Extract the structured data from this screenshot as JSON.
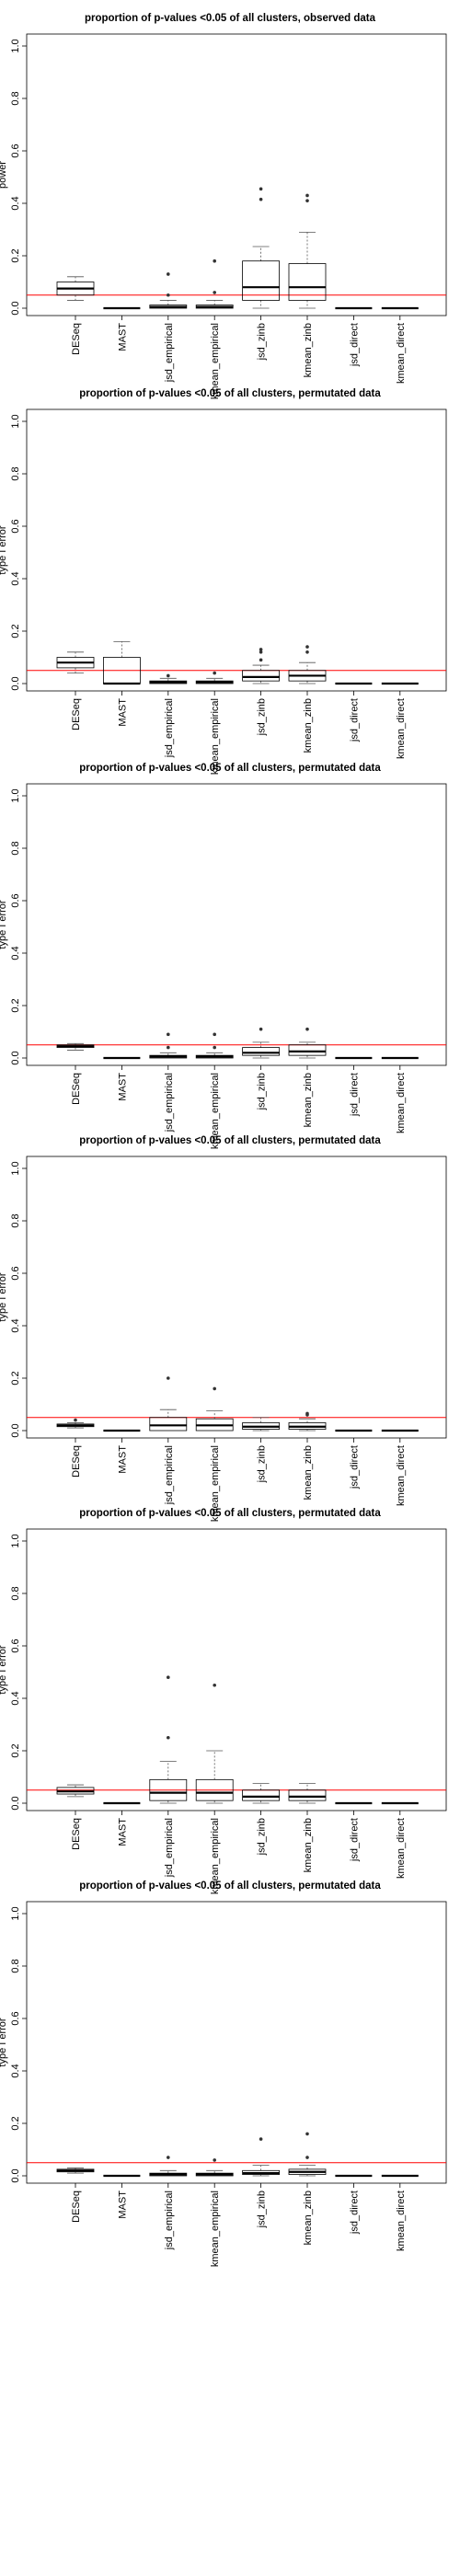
{
  "chart_data": [
    {
      "type": "boxplot",
      "title": "proportion of p-values <0.05 of all clusters, observed data",
      "ylabel": "power",
      "ylim": [
        0,
        1.0
      ],
      "yticks": [
        "0.0",
        "0.2",
        "0.4",
        "0.6",
        "0.8",
        "1.0"
      ],
      "reference_line": 0.05,
      "categories": [
        "DESeq",
        "MAST",
        "jsd_empirical",
        "kmean_empirical",
        "jsd_zinb",
        "kmean_zinb",
        "jsd_direct",
        "kmean_direct"
      ],
      "boxes": [
        {
          "low": 0.03,
          "q1": 0.05,
          "median": 0.075,
          "q3": 0.1,
          "high": 0.12,
          "outliers": []
        },
        {
          "low": 0.0,
          "q1": 0.0,
          "median": 0.0,
          "q3": 0.0,
          "high": 0.0,
          "outliers": []
        },
        {
          "low": 0.0,
          "q1": 0.0,
          "median": 0.005,
          "q3": 0.012,
          "high": 0.03,
          "outliers": [
            0.05,
            0.13
          ]
        },
        {
          "low": 0.0,
          "q1": 0.0,
          "median": 0.005,
          "q3": 0.012,
          "high": 0.03,
          "outliers": [
            0.06,
            0.18
          ]
        },
        {
          "low": 0.0,
          "q1": 0.03,
          "median": 0.08,
          "q3": 0.18,
          "high": 0.235,
          "outliers": [
            0.415,
            0.455
          ]
        },
        {
          "low": 0.0,
          "q1": 0.03,
          "median": 0.08,
          "q3": 0.17,
          "high": 0.29,
          "outliers": [
            0.41,
            0.43
          ]
        },
        {
          "low": 0.0,
          "q1": 0.0,
          "median": 0.0,
          "q3": 0.0,
          "high": 0.0,
          "outliers": []
        },
        {
          "low": 0.0,
          "q1": 0.0,
          "median": 0.0,
          "q3": 0.0,
          "high": 0.0,
          "outliers": []
        }
      ]
    },
    {
      "type": "boxplot",
      "title": "proportion of p-values <0.05 of all clusters, permutated data",
      "ylabel": "type I error",
      "ylim": [
        0,
        1.0
      ],
      "yticks": [
        "0.0",
        "0.2",
        "0.4",
        "0.6",
        "0.8",
        "1.0"
      ],
      "reference_line": 0.05,
      "categories": [
        "DESeq",
        "MAST",
        "jsd_empirical",
        "kmean_empirical",
        "jsd_zinb",
        "kmean_zinb",
        "jsd_direct",
        "kmean_direct"
      ],
      "boxes": [
        {
          "low": 0.04,
          "q1": 0.06,
          "median": 0.08,
          "q3": 0.1,
          "high": 0.12,
          "outliers": []
        },
        {
          "low": 0.0,
          "q1": 0.0,
          "median": 0.0,
          "q3": 0.1,
          "high": 0.16,
          "outliers": []
        },
        {
          "low": 0.0,
          "q1": 0.0,
          "median": 0.005,
          "q3": 0.01,
          "high": 0.02,
          "outliers": [
            0.03
          ]
        },
        {
          "low": 0.0,
          "q1": 0.0,
          "median": 0.005,
          "q3": 0.01,
          "high": 0.02,
          "outliers": [
            0.04
          ]
        },
        {
          "low": 0.0,
          "q1": 0.01,
          "median": 0.025,
          "q3": 0.05,
          "high": 0.07,
          "outliers": [
            0.09,
            0.12,
            0.13
          ]
        },
        {
          "low": 0.0,
          "q1": 0.01,
          "median": 0.03,
          "q3": 0.05,
          "high": 0.08,
          "outliers": [
            0.12,
            0.14
          ]
        },
        {
          "low": 0.0,
          "q1": 0.0,
          "median": 0.0,
          "q3": 0.0,
          "high": 0.0,
          "outliers": []
        },
        {
          "low": 0.0,
          "q1": 0.0,
          "median": 0.0,
          "q3": 0.0,
          "high": 0.0,
          "outliers": []
        }
      ]
    },
    {
      "type": "boxplot",
      "title": "proportion of p-values <0.05 of all clusters, permutated data",
      "ylabel": "type I error",
      "ylim": [
        0,
        1.0
      ],
      "yticks": [
        "0.0",
        "0.2",
        "0.4",
        "0.6",
        "0.8",
        "1.0"
      ],
      "reference_line": 0.05,
      "categories": [
        "DESeq",
        "MAST",
        "jsd_empirical",
        "kmean_empirical",
        "jsd_zinb",
        "kmean_zinb",
        "jsd_direct",
        "kmean_direct"
      ],
      "boxes": [
        {
          "low": 0.03,
          "q1": 0.04,
          "median": 0.045,
          "q3": 0.05,
          "high": 0.055,
          "outliers": []
        },
        {
          "low": 0.0,
          "q1": 0.0,
          "median": 0.0,
          "q3": 0.0,
          "high": 0.0,
          "outliers": []
        },
        {
          "low": 0.0,
          "q1": 0.0,
          "median": 0.005,
          "q3": 0.01,
          "high": 0.02,
          "outliers": [
            0.04,
            0.09
          ]
        },
        {
          "low": 0.0,
          "q1": 0.0,
          "median": 0.005,
          "q3": 0.01,
          "high": 0.02,
          "outliers": [
            0.04,
            0.09
          ]
        },
        {
          "low": 0.0,
          "q1": 0.01,
          "median": 0.02,
          "q3": 0.04,
          "high": 0.06,
          "outliers": [
            0.11
          ]
        },
        {
          "low": 0.0,
          "q1": 0.01,
          "median": 0.025,
          "q3": 0.05,
          "high": 0.06,
          "outliers": [
            0.11
          ]
        },
        {
          "low": 0.0,
          "q1": 0.0,
          "median": 0.0,
          "q3": 0.0,
          "high": 0.0,
          "outliers": []
        },
        {
          "low": 0.0,
          "q1": 0.0,
          "median": 0.0,
          "q3": 0.0,
          "high": 0.0,
          "outliers": []
        }
      ]
    },
    {
      "type": "boxplot",
      "title": "proportion of p-values <0.05 of all clusters, permutated data",
      "ylabel": "type I error",
      "ylim": [
        0,
        1.0
      ],
      "yticks": [
        "0.0",
        "0.2",
        "0.4",
        "0.6",
        "0.8",
        "1.0"
      ],
      "reference_line": 0.05,
      "categories": [
        "DESeq",
        "MAST",
        "jsd_empirical",
        "kmean_empirical",
        "jsd_zinb",
        "kmean_zinb",
        "jsd_direct",
        "kmean_direct"
      ],
      "boxes": [
        {
          "low": 0.01,
          "q1": 0.015,
          "median": 0.02,
          "q3": 0.025,
          "high": 0.03,
          "outliers": [
            0.04
          ]
        },
        {
          "low": 0.0,
          "q1": 0.0,
          "median": 0.0,
          "q3": 0.0,
          "high": 0.0,
          "outliers": []
        },
        {
          "low": 0.0,
          "q1": 0.0,
          "median": 0.02,
          "q3": 0.05,
          "high": 0.08,
          "outliers": [
            0.2
          ]
        },
        {
          "low": 0.0,
          "q1": 0.0,
          "median": 0.02,
          "q3": 0.045,
          "high": 0.075,
          "outliers": [
            0.16
          ]
        },
        {
          "low": 0.0,
          "q1": 0.005,
          "median": 0.015,
          "q3": 0.03,
          "high": 0.05,
          "outliers": []
        },
        {
          "low": 0.0,
          "q1": 0.005,
          "median": 0.015,
          "q3": 0.03,
          "high": 0.045,
          "outliers": [
            0.06,
            0.065
          ]
        },
        {
          "low": 0.0,
          "q1": 0.0,
          "median": 0.0,
          "q3": 0.0,
          "high": 0.0,
          "outliers": []
        },
        {
          "low": 0.0,
          "q1": 0.0,
          "median": 0.0,
          "q3": 0.0,
          "high": 0.0,
          "outliers": []
        }
      ]
    },
    {
      "type": "boxplot",
      "title": "proportion of p-values <0.05 of all clusters, permutated data",
      "ylabel": "type I error",
      "ylim": [
        0,
        1.0
      ],
      "yticks": [
        "0.0",
        "0.2",
        "0.4",
        "0.6",
        "0.8",
        "1.0"
      ],
      "reference_line": 0.05,
      "categories": [
        "DESeq",
        "MAST",
        "jsd_empirical",
        "kmean_empirical",
        "jsd_zinb",
        "kmean_zinb",
        "jsd_direct",
        "kmean_direct"
      ],
      "boxes": [
        {
          "low": 0.025,
          "q1": 0.035,
          "median": 0.045,
          "q3": 0.06,
          "high": 0.07,
          "outliers": []
        },
        {
          "low": 0.0,
          "q1": 0.0,
          "median": 0.0,
          "q3": 0.0,
          "high": 0.0,
          "outliers": []
        },
        {
          "low": 0.0,
          "q1": 0.01,
          "median": 0.04,
          "q3": 0.09,
          "high": 0.16,
          "outliers": [
            0.25,
            0.48
          ]
        },
        {
          "low": 0.0,
          "q1": 0.01,
          "median": 0.04,
          "q3": 0.09,
          "high": 0.2,
          "outliers": [
            0.45
          ]
        },
        {
          "low": 0.0,
          "q1": 0.01,
          "median": 0.025,
          "q3": 0.05,
          "high": 0.075,
          "outliers": []
        },
        {
          "low": 0.0,
          "q1": 0.01,
          "median": 0.025,
          "q3": 0.05,
          "high": 0.075,
          "outliers": []
        },
        {
          "low": 0.0,
          "q1": 0.0,
          "median": 0.0,
          "q3": 0.0,
          "high": 0.0,
          "outliers": []
        },
        {
          "low": 0.0,
          "q1": 0.0,
          "median": 0.0,
          "q3": 0.0,
          "high": 0.0,
          "outliers": []
        }
      ]
    },
    {
      "type": "boxplot",
      "title": "proportion of p-values <0.05 of all clusters, permutated data",
      "ylabel": "type I error",
      "ylim": [
        0,
        1.0
      ],
      "yticks": [
        "0.0",
        "0.2",
        "0.4",
        "0.6",
        "0.8",
        "1.0"
      ],
      "reference_line": 0.05,
      "categories": [
        "DESeq",
        "MAST",
        "jsd_empirical",
        "kmean_empirical",
        "jsd_zinb",
        "kmean_zinb",
        "jsd_direct",
        "kmean_direct"
      ],
      "boxes": [
        {
          "low": 0.01,
          "q1": 0.015,
          "median": 0.02,
          "q3": 0.025,
          "high": 0.03,
          "outliers": []
        },
        {
          "low": 0.0,
          "q1": 0.0,
          "median": 0.0,
          "q3": 0.0,
          "high": 0.0,
          "outliers": []
        },
        {
          "low": 0.0,
          "q1": 0.0,
          "median": 0.005,
          "q3": 0.01,
          "high": 0.02,
          "outliers": [
            0.07
          ]
        },
        {
          "low": 0.0,
          "q1": 0.0,
          "median": 0.005,
          "q3": 0.01,
          "high": 0.02,
          "outliers": [
            0.06
          ]
        },
        {
          "low": 0.0,
          "q1": 0.005,
          "median": 0.01,
          "q3": 0.02,
          "high": 0.04,
          "outliers": [
            0.14
          ]
        },
        {
          "low": 0.0,
          "q1": 0.005,
          "median": 0.015,
          "q3": 0.025,
          "high": 0.04,
          "outliers": [
            0.07,
            0.16
          ]
        },
        {
          "low": 0.0,
          "q1": 0.0,
          "median": 0.0,
          "q3": 0.0,
          "high": 0.0,
          "outliers": []
        },
        {
          "low": 0.0,
          "q1": 0.0,
          "median": 0.0,
          "q3": 0.0,
          "high": 0.0,
          "outliers": []
        }
      ]
    }
  ],
  "colors": {
    "reference_line": "#ff0000",
    "axis": "#000000",
    "whisker": "#555555"
  }
}
